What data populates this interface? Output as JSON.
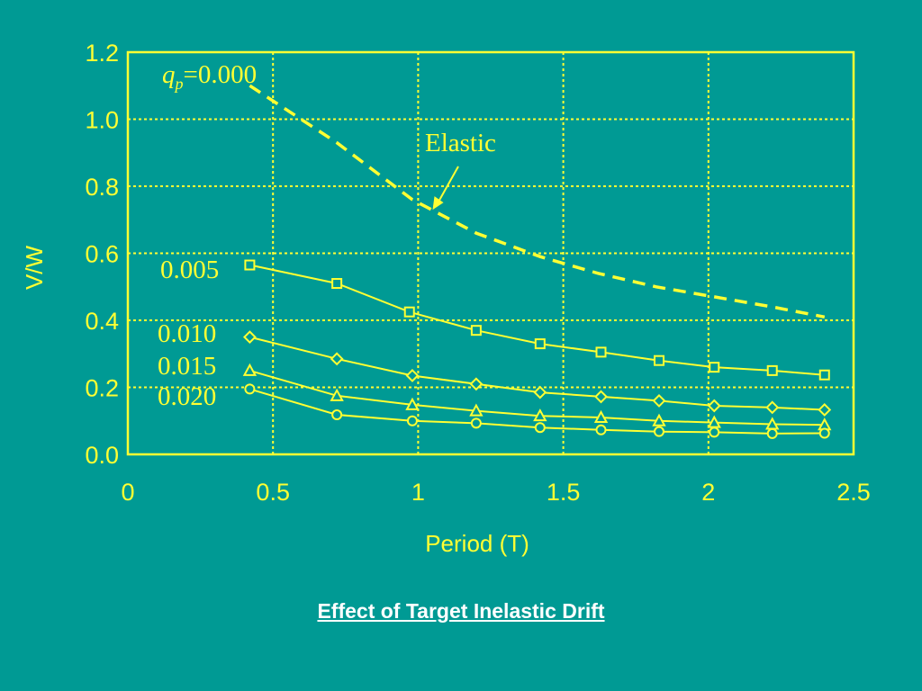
{
  "slide": {
    "caption": "Effect of Target Inelastic Drift"
  },
  "colors": {
    "background": "#009a94",
    "foreground": "#ffff33",
    "caption": "#ffffff"
  },
  "chart_data": {
    "type": "line",
    "title": "",
    "xlabel": "Period (T)",
    "ylabel": "V/W",
    "xlim": [
      0,
      2.5
    ],
    "ylim": [
      0,
      1.2
    ],
    "xticks": [
      "0",
      "0.5",
      "1",
      "1.5",
      "2",
      "2.5"
    ],
    "yticks": [
      "0.0",
      "0.2",
      "0.4",
      "0.6",
      "0.8",
      "1.0",
      "1.2"
    ],
    "grid": true,
    "series": [
      {
        "name": "0.000",
        "label_prefix": "q",
        "label_subscript": "p",
        "label_equals": "=",
        "marker": "none",
        "line_style": "dashed",
        "x": [
          0.42,
          0.72,
          0.98,
          1.2,
          1.42,
          1.62,
          1.82,
          2.02,
          2.22,
          2.4
        ],
        "y": [
          1.1,
          0.93,
          0.76,
          0.66,
          0.59,
          0.54,
          0.5,
          0.47,
          0.44,
          0.41
        ]
      },
      {
        "name": "0.005",
        "marker": "square",
        "line_style": "solid",
        "x": [
          0.42,
          0.72,
          0.97,
          1.2,
          1.42,
          1.63,
          1.83,
          2.02,
          2.22,
          2.4
        ],
        "y": [
          0.565,
          0.51,
          0.425,
          0.37,
          0.33,
          0.305,
          0.28,
          0.26,
          0.25,
          0.237
        ]
      },
      {
        "name": "0.010",
        "marker": "diamond",
        "line_style": "solid",
        "x": [
          0.42,
          0.72,
          0.98,
          1.2,
          1.42,
          1.63,
          1.83,
          2.02,
          2.22,
          2.4
        ],
        "y": [
          0.35,
          0.285,
          0.235,
          0.21,
          0.185,
          0.172,
          0.16,
          0.145,
          0.14,
          0.133
        ]
      },
      {
        "name": "0.015",
        "marker": "triangle",
        "line_style": "solid",
        "x": [
          0.42,
          0.72,
          0.98,
          1.2,
          1.42,
          1.63,
          1.83,
          2.02,
          2.22,
          2.4
        ],
        "y": [
          0.25,
          0.175,
          0.148,
          0.13,
          0.115,
          0.11,
          0.1,
          0.095,
          0.09,
          0.088
        ]
      },
      {
        "name": "0.020",
        "marker": "circle",
        "line_style": "solid",
        "x": [
          0.42,
          0.72,
          0.98,
          1.2,
          1.42,
          1.63,
          1.83,
          2.02,
          2.22,
          2.4
        ],
        "y": [
          0.195,
          0.118,
          0.1,
          0.093,
          0.08,
          0.073,
          0.068,
          0.066,
          0.062,
          0.063
        ]
      }
    ],
    "annotations": [
      {
        "text": "Elastic",
        "points_to": {
          "x": 1.05,
          "y": 0.73
        }
      }
    ]
  }
}
